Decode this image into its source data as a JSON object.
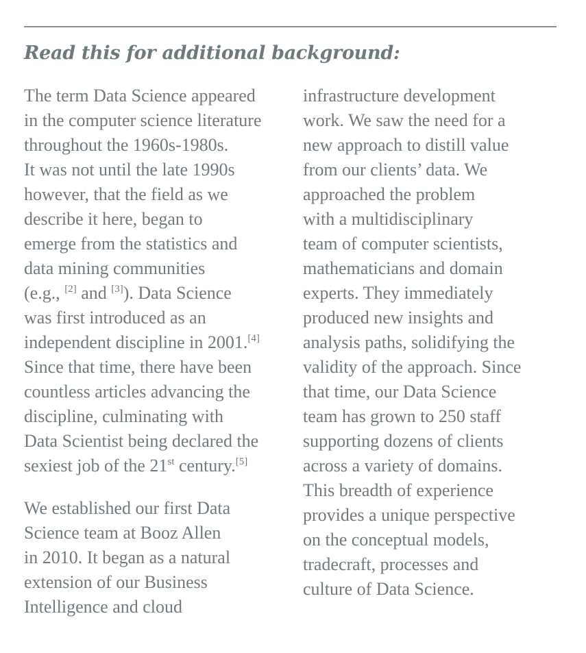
{
  "heading": "Read this for additional background:",
  "left_column": {
    "paragraph1": [
      [
        "The term Data Science appeared"
      ],
      [
        "in the computer science literature"
      ],
      [
        "throughout the 1960s-1980s."
      ],
      [
        "It was not until the late 1990s"
      ],
      [
        "however, that the field as we"
      ],
      [
        "describe it here, began to"
      ],
      [
        "emerge from the statistics and"
      ],
      [
        "data mining communities"
      ],
      [
        "(e.g., ",
        "[2]",
        " and ",
        "[3]",
        "). Data Science"
      ],
      [
        "was first introduced as an"
      ],
      [
        "independent discipline in 2001.",
        "[4]"
      ],
      [
        "Since that time, there have been"
      ],
      [
        "countless articles advancing the"
      ],
      [
        "discipline, culminating with"
      ],
      [
        "Data Scientist being declared the"
      ],
      [
        "sexiest job of the 21",
        "st",
        " century.",
        "[5]"
      ]
    ],
    "paragraph2": [
      "We established our first Data",
      "Science team at Booz Allen",
      "in 2010. It began as a natural",
      "extension of our Business",
      "Intelligence and cloud"
    ]
  },
  "right_column": {
    "lines": [
      "infrastructure development",
      "work. We saw the need for a",
      "new approach to distill value",
      "from our clients’ data. We",
      "approached the problem",
      "with a multidisciplinary",
      "team of computer scientists,",
      "mathematicians and domain",
      "experts. They immediately",
      "produced new insights and",
      "analysis paths, solidifying the",
      "validity of the approach. Since",
      "that time, our Data Science",
      "team has grown to 250 staff",
      "supporting dozens of clients",
      "across a variety of domains.",
      "This breadth of experience",
      "provides a unique perspective",
      "on the conceptual models,",
      "tradecraft, processes and",
      "culture of Data Science."
    ]
  }
}
